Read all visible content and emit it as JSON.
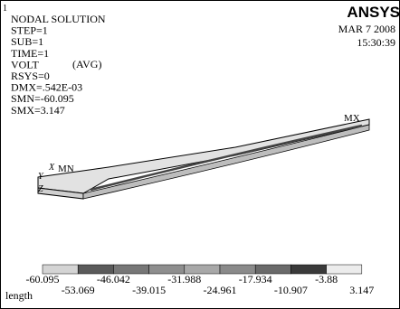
{
  "window_number": "1",
  "info_lines": [
    "NODAL SOLUTION",
    "STEP=1",
    "SUB=1",
    "TIME=1",
    "VOLT",
    "RSYS=0",
    "DMX=.542E-03",
    "SMN=-60.095",
    "SMX=3.147"
  ],
  "avg_label": "(AVG)",
  "logo": "ANSYS",
  "date": "MAR  7 2008",
  "time": "15:30:39",
  "labels": {
    "mx": "MX",
    "mn": "MN",
    "x": "X",
    "y": "Y",
    "z": "Z"
  },
  "legend": {
    "labels": [
      "-60.095",
      "-53.069",
      "-46.042",
      "-39.015",
      "-31.988",
      "-24.961",
      "-17.934",
      "-10.907",
      "-3.88",
      "3.147"
    ],
    "colors": [
      "#d4d4d4",
      "#5a5a5a",
      "#777777",
      "#8e8e8e",
      "#a8a8a8",
      "#8a8a8a",
      "#6a6a6a",
      "#3a3a3a",
      "#ececec"
    ],
    "unit": "length"
  }
}
